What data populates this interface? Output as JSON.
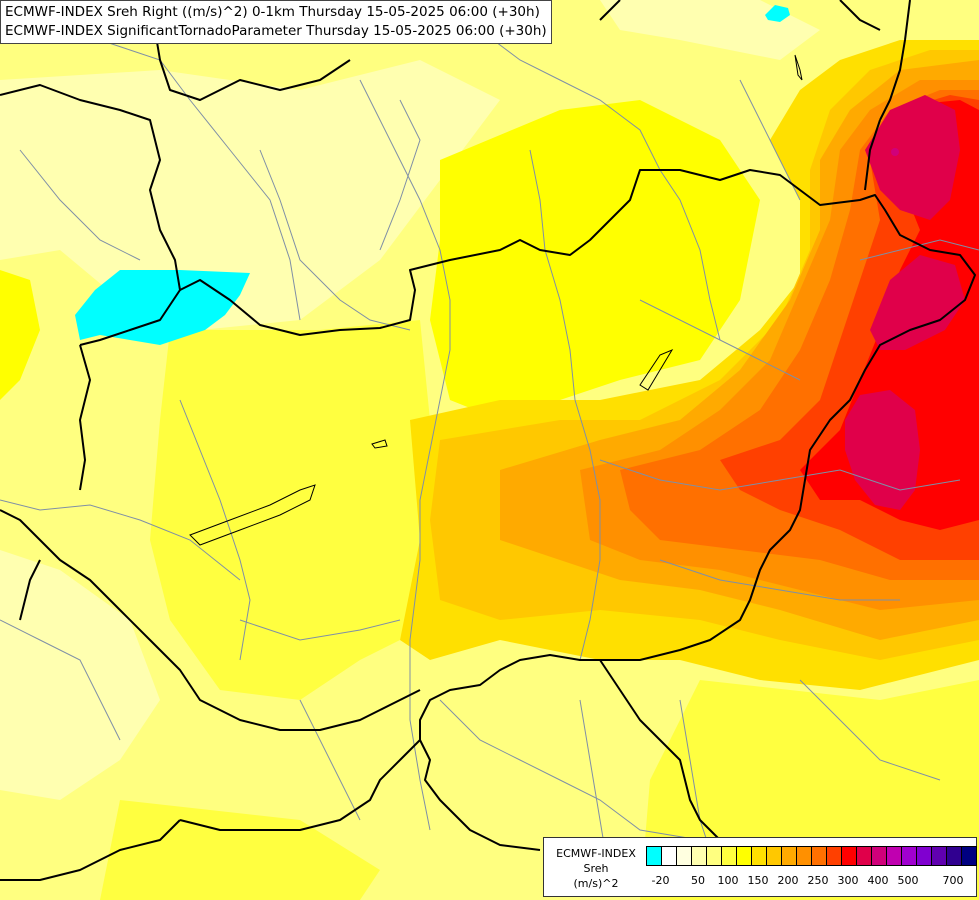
{
  "title": {
    "line1": "ECMWF-INDEX Sreh Right ((m/s)^2) 0-1km Thursday 15-05-2025 06:00 (+30h)",
    "line2": "ECMWF-INDEX SignificantTornadoParameter Thursday 15-05-2025 06:00 (+30h)"
  },
  "legend": {
    "line1": "ECMWF-INDEX",
    "line2": "Sreh",
    "line3": "(m/s)^2",
    "colors": [
      "#00ffff",
      "#ffffff",
      "#ffffe0",
      "#ffffb0",
      "#ffff80",
      "#ffff40",
      "#ffff00",
      "#ffe000",
      "#ffc800",
      "#ffaa00",
      "#ff9000",
      "#ff7000",
      "#ff4000",
      "#ff0000",
      "#e0004a",
      "#d0007a",
      "#c000b0",
      "#a000d0",
      "#8000d0",
      "#6000b0",
      "#300090",
      "#000080"
    ],
    "ticks": [
      "-20",
      "50",
      "100",
      "150",
      "200",
      "250",
      "300",
      "400",
      "500",
      "700"
    ]
  }
}
